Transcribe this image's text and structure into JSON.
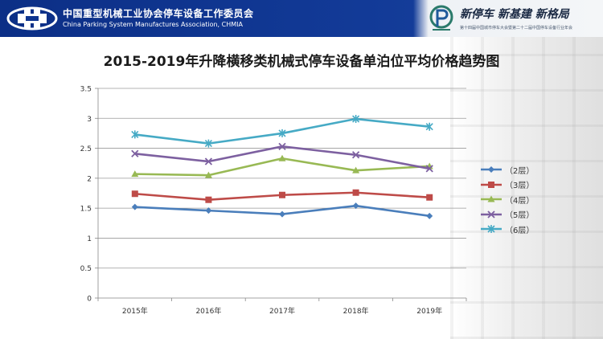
{
  "header": {
    "org_name_cn": "中国重型机械工业协会停车设备工作委员会",
    "org_name_en": "China Parking System Manufactures Association, CHMIA",
    "slogan": "新停车  新基建  新格局",
    "slogan_sub": "第十四届中国城市停车大会暨第二十二届中国停车设备行业年会",
    "brand_color": "#0f3590"
  },
  "chart_data": {
    "type": "line",
    "title": "2015-2019年升降横移类机械式停车设备单泊位平均价格趋势图",
    "categories": [
      "2015年",
      "2016年",
      "2017年",
      "2018年",
      "2019年"
    ],
    "ylim": [
      0,
      3.5
    ],
    "yticks": [
      "0",
      "0.5",
      "1",
      "1.5",
      "2",
      "2.5",
      "3",
      "3.5"
    ],
    "grid": true,
    "legend_position": "right",
    "series": [
      {
        "name": "（2层）",
        "values": [
          1.52,
          1.46,
          1.4,
          1.54,
          1.37
        ],
        "color": "#4a7ebb",
        "marker": "diamond"
      },
      {
        "name": "（3层）",
        "values": [
          1.74,
          1.64,
          1.72,
          1.76,
          1.68
        ],
        "color": "#be4b48",
        "marker": "square"
      },
      {
        "name": "（4层）",
        "values": [
          2.07,
          2.05,
          2.33,
          2.13,
          2.2
        ],
        "color": "#98b954",
        "marker": "triangle"
      },
      {
        "name": "（5层）",
        "values": [
          2.41,
          2.28,
          2.53,
          2.39,
          2.16
        ],
        "color": "#7d60a0",
        "marker": "x"
      },
      {
        "name": "（6层）",
        "values": [
          2.73,
          2.58,
          2.75,
          2.99,
          2.86
        ],
        "color": "#46aac5",
        "marker": "star"
      }
    ]
  }
}
